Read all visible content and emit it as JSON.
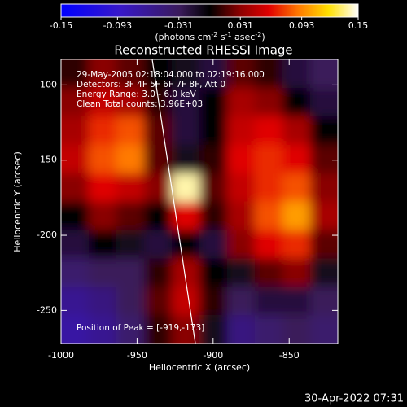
{
  "chart_data": {
    "type": "heatmap",
    "title": "Reconstructed RHESSI Image",
    "x_label": "Heliocentric X (arcsec)",
    "y_label": "Heliocentric Y (arcsec)",
    "colorbar_label": [
      "(photons cm",
      "-2",
      " s",
      "-1",
      " asec",
      "-2",
      ")"
    ],
    "annotations": [
      "29-May-2005 02:18:04.000 to 02:19:16.000",
      "Detectors: 3F 4F 5F 6F 7F 8F, Att 0",
      "Energy Range: 3.0 - 6.0 keV",
      "Clean     Total counts: 3.96E+03"
    ],
    "peak_label": "Position of Peak = [-919,-173]",
    "timestamp": "30-Apr-2022 07:31",
    "xlim": [
      -1000,
      -818
    ],
    "ylim": [
      -272,
      -83
    ],
    "xticks": [
      -1000,
      -950,
      -900,
      -850
    ],
    "yticks": [
      -100,
      -150,
      -200,
      -250
    ],
    "clim": [
      -0.15,
      0.15
    ],
    "cticks": [
      -0.15,
      -0.093,
      -0.031,
      0.031,
      0.093,
      0.15
    ],
    "colormap": [
      [
        -0.15,
        "#0000ff"
      ],
      [
        -0.09,
        "#3818c8"
      ],
      [
        -0.03,
        "#3a1a5a"
      ],
      [
        0,
        "#000000"
      ],
      [
        0.03,
        "#8a0000"
      ],
      [
        0.06,
        "#e00000"
      ],
      [
        0.09,
        "#ff7a00"
      ],
      [
        0.12,
        "#ffe000"
      ],
      [
        0.15,
        "#ffffff"
      ]
    ],
    "values": [
      [
        0.01,
        0.03,
        0.02,
        0.0,
        -0.01,
        -0.02,
        0.02,
        0.01,
        -0.02,
        -0.03
      ],
      [
        0.03,
        0.05,
        0.04,
        0.01,
        -0.02,
        0.0,
        0.04,
        0.03,
        0.0,
        -0.02
      ],
      [
        0.04,
        0.07,
        0.08,
        0.02,
        -0.02,
        0.0,
        0.05,
        0.06,
        0.04,
        0.0
      ],
      [
        0.05,
        0.08,
        0.09,
        0.02,
        -0.01,
        0.01,
        0.06,
        0.07,
        0.06,
        0.02
      ],
      [
        0.03,
        0.06,
        0.05,
        0.03,
        0.14,
        0.02,
        0.05,
        0.07,
        0.08,
        0.03
      ],
      [
        0.0,
        0.03,
        0.02,
        0.0,
        0.06,
        0.01,
        0.04,
        0.08,
        0.1,
        0.04
      ],
      [
        -0.02,
        0.0,
        -0.01,
        -0.02,
        0.0,
        -0.02,
        0.03,
        0.06,
        0.07,
        0.02
      ],
      [
        -0.04,
        -0.03,
        -0.03,
        0.01,
        0.04,
        0.0,
        -0.01,
        0.02,
        0.03,
        -0.01
      ],
      [
        -0.06,
        -0.05,
        -0.03,
        0.02,
        0.05,
        0.01,
        -0.03,
        -0.02,
        -0.02,
        -0.03
      ],
      [
        -0.07,
        -0.06,
        -0.04,
        0.01,
        0.03,
        -0.01,
        -0.05,
        -0.04,
        -0.03,
        -0.04
      ]
    ]
  }
}
